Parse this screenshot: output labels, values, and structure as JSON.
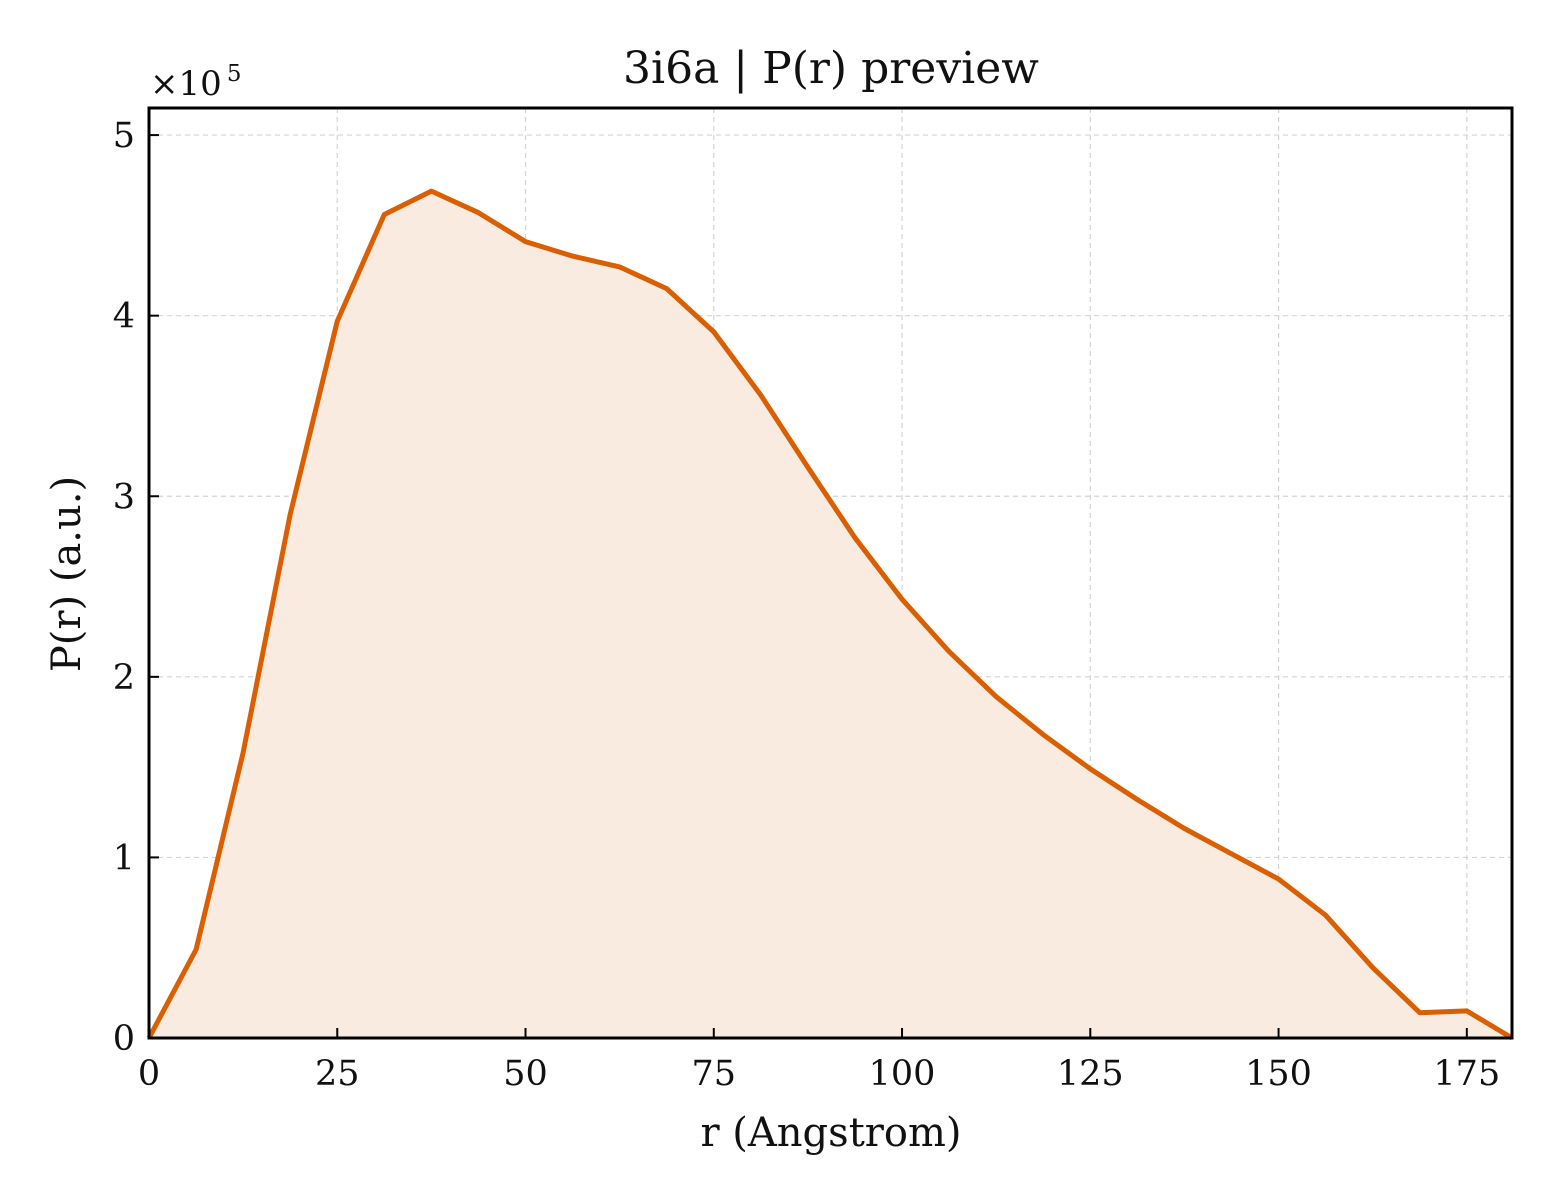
{
  "chart_data": {
    "type": "area",
    "title": "3i6a | P(r) preview",
    "xlabel": "r (Angstrom)",
    "ylabel": "P(r) (a.u.)",
    "y_multiplier": {
      "base": "×10",
      "exponent": "5"
    },
    "xlim": [
      0,
      181
    ],
    "ylim": [
      0,
      5.15
    ],
    "x_ticks": [
      0,
      25,
      50,
      75,
      100,
      125,
      150,
      175
    ],
    "y_ticks": [
      0,
      1,
      2,
      3,
      4,
      5
    ],
    "grid": true,
    "legend": "none",
    "series": [
      {
        "x": [
          0,
          6.25,
          12.5,
          18.75,
          25,
          31.25,
          37.5,
          43.75,
          50,
          56.25,
          62.5,
          68.75,
          75,
          81.25,
          87.5,
          93.75,
          100,
          106.25,
          112.5,
          118.75,
          125,
          131.25,
          137.5,
          143.75,
          150,
          156.25,
          162.5,
          168.75,
          175,
          181
        ],
        "values": [
          0,
          0.49,
          1.58,
          2.9,
          3.97,
          4.56,
          4.69,
          4.57,
          4.41,
          4.33,
          4.27,
          4.15,
          3.91,
          3.56,
          3.16,
          2.77,
          2.43,
          2.14,
          1.89,
          1.68,
          1.49,
          1.32,
          1.16,
          1.02,
          0.88,
          0.68,
          0.39,
          0.14,
          0.15,
          0
        ]
      }
    ],
    "colors": {
      "line": "#d95f02",
      "fill": "#f9ebe0",
      "grid": "#d4d4d4",
      "axes": "#000000"
    }
  }
}
